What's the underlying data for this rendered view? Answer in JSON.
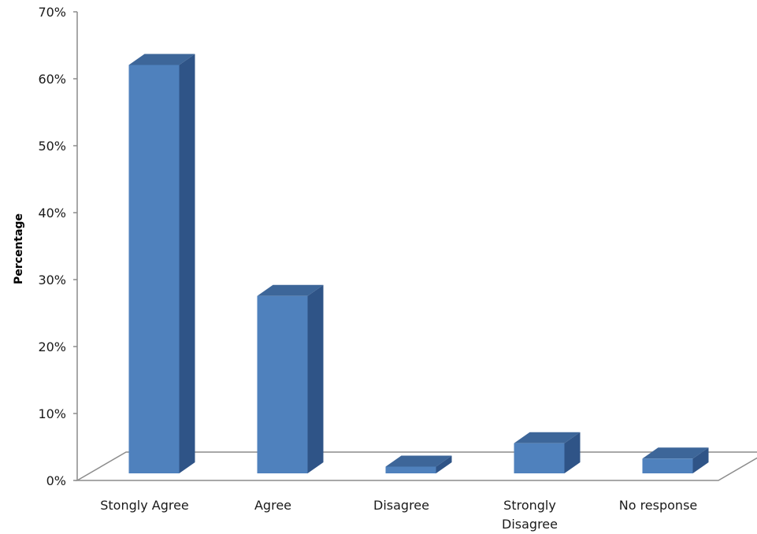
{
  "chart_data": {
    "type": "bar",
    "title": "",
    "xlabel": "",
    "ylabel": "Percentage",
    "ylim": [
      0,
      70
    ],
    "y_ticks": [
      0,
      10,
      20,
      30,
      40,
      50,
      60,
      70
    ],
    "y_tick_labels": [
      "0%",
      "10%",
      "20%",
      "30%",
      "40%",
      "50%",
      "60%",
      "70%"
    ],
    "grid": false,
    "legend": "none",
    "style": "3d-column",
    "categories": [
      "Stongly Agree",
      "Agree",
      "Disagree",
      "Strongly Disagree",
      "No response"
    ],
    "category_label_lines": [
      [
        "Stongly Agree"
      ],
      [
        "Agree"
      ],
      [
        "Disagree"
      ],
      [
        "Strongly",
        "Disagree"
      ],
      [
        "No response"
      ]
    ],
    "values": [
      61,
      26.5,
      1,
      4.5,
      2.2
    ],
    "unit": "%"
  },
  "colors": {
    "bar_front": "#4f81bd",
    "bar_side": "#2f5487",
    "bar_top": "#3d6699",
    "axis": "#8c8c8c",
    "text": "#1a1a1a"
  }
}
